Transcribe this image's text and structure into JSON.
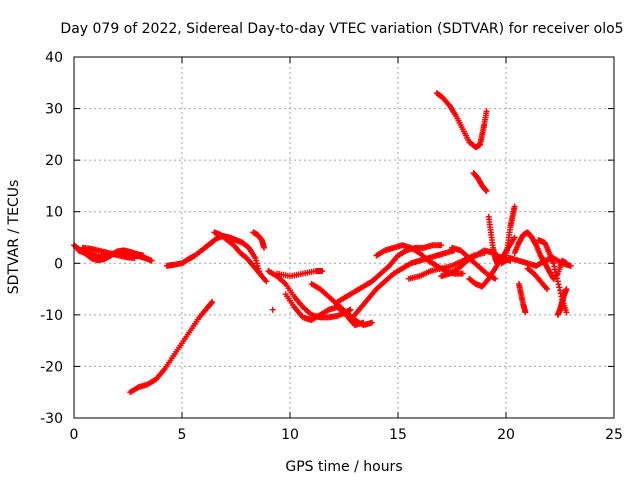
{
  "chart_data": {
    "type": "scatter",
    "title": "Day 079 of 2022, Sidereal Day-to-day VTEC variation (SDTVAR) for receiver olo5",
    "xlabel": "GPS time / hours",
    "ylabel": "SDTVAR / TECUs",
    "xlim": [
      0,
      25
    ],
    "ylim": [
      -30,
      40
    ],
    "xticks": [
      0,
      5,
      10,
      15,
      20,
      25
    ],
    "yticks": [
      -30,
      -20,
      -10,
      0,
      10,
      20,
      30,
      40
    ],
    "xtick_labels": [
      "0",
      "5",
      "10",
      "15",
      "20",
      "25"
    ],
    "ytick_labels": [
      "-30",
      "-20",
      "-10",
      "0",
      "10",
      "20",
      "30",
      "40"
    ],
    "grid": true,
    "marker": "plus",
    "color": "#ff0000",
    "series": [
      {
        "name": "early-1",
        "x": [
          0.0,
          0.3,
          0.6,
          0.9,
          1.2,
          1.5,
          1.8,
          2.1,
          2.4,
          2.7,
          3.0,
          3.3,
          3.6
        ],
        "y": [
          3.5,
          2.5,
          2.0,
          1.5,
          1.2,
          1.4,
          1.8,
          2.2,
          2.0,
          1.6,
          1.4,
          1.0,
          0.5
        ]
      },
      {
        "name": "early-2",
        "x": [
          0.2,
          0.5,
          0.8,
          1.1,
          1.4,
          1.7,
          2.0,
          2.3,
          2.6,
          2.9,
          3.2
        ],
        "y": [
          2.5,
          2.0,
          1.0,
          0.6,
          0.8,
          1.5,
          2.3,
          2.5,
          2.2,
          1.8,
          1.5
        ]
      },
      {
        "name": "early-3",
        "x": [
          0.4,
          0.8,
          1.2,
          1.6,
          2.0,
          2.4,
          2.8
        ],
        "y": [
          3.0,
          2.8,
          2.4,
          2.0,
          1.6,
          1.2,
          1.0
        ]
      },
      {
        "name": "rise-neg",
        "x": [
          2.6,
          3.0,
          3.4,
          3.8,
          4.2,
          4.6,
          5.0,
          5.4,
          5.8,
          6.2,
          6.4
        ],
        "y": [
          -25.0,
          -24.0,
          -23.5,
          -22.5,
          -20.5,
          -18.0,
          -15.5,
          -13.0,
          -10.5,
          -8.5,
          -7.5
        ]
      },
      {
        "name": "mid-1",
        "x": [
          4.3,
          4.6,
          5.0,
          5.3,
          5.6,
          6.0,
          6.3,
          6.6,
          6.9,
          7.2,
          7.5,
          7.8,
          8.1,
          8.4,
          8.6
        ],
        "y": [
          -0.5,
          -0.3,
          0.0,
          0.8,
          1.5,
          2.8,
          3.8,
          4.8,
          5.3,
          5.0,
          4.5,
          4.0,
          3.0,
          1.0,
          -2.0
        ]
      },
      {
        "name": "mid-2",
        "x": [
          6.5,
          6.8,
          7.1,
          7.4,
          7.7,
          8.0,
          8.3,
          8.6,
          8.9
        ],
        "y": [
          6.0,
          5.5,
          4.5,
          3.5,
          2.0,
          1.0,
          -0.5,
          -2.0,
          -3.5
        ]
      },
      {
        "name": "mid-3",
        "x": [
          8.3,
          8.5,
          8.7,
          8.8
        ],
        "y": [
          6.0,
          5.5,
          4.5,
          3.0
        ]
      },
      {
        "name": "mid-4",
        "x": [
          9.2
        ],
        "y": [
          -9.0
        ]
      },
      {
        "name": "trough-1",
        "x": [
          9.0,
          9.4,
          9.8,
          10.2,
          10.6,
          11.0,
          11.4,
          11.8,
          12.2,
          12.6,
          12.8
        ],
        "y": [
          -1.5,
          -2.5,
          -4.0,
          -6.5,
          -8.5,
          -10.0,
          -10.5,
          -10.5,
          -10.2,
          -9.5,
          -9.0
        ]
      },
      {
        "name": "trough-2",
        "x": [
          9.8,
          10.2,
          10.6,
          11.0,
          11.4,
          11.8,
          12.2,
          12.6,
          13.0,
          13.4
        ],
        "y": [
          -6.0,
          -8.5,
          -10.5,
          -11.0,
          -10.0,
          -9.0,
          -8.5,
          -10.0,
          -12.0,
          -11.5
        ]
      },
      {
        "name": "trough-3",
        "x": [
          9.4,
          10.0,
          10.6,
          11.2,
          11.5
        ],
        "y": [
          -2.0,
          -2.5,
          -2.0,
          -1.5,
          -1.5
        ]
      },
      {
        "name": "trough-4",
        "x": [
          11.0,
          11.4,
          11.8,
          12.2,
          12.6,
          13.0,
          13.4,
          13.8
        ],
        "y": [
          -4.0,
          -5.0,
          -6.5,
          -8.0,
          -9.5,
          -11.0,
          -12.0,
          -11.5
        ]
      },
      {
        "name": "recover-1",
        "x": [
          12.8,
          13.2,
          13.6,
          14.0,
          14.4,
          14.8,
          15.2,
          15.6,
          16.0,
          16.4,
          16.8,
          17.2,
          17.6
        ],
        "y": [
          -11.0,
          -9.0,
          -7.0,
          -5.0,
          -3.5,
          -2.0,
          -1.0,
          0.0,
          0.5,
          1.0,
          1.5,
          2.0,
          2.5
        ]
      },
      {
        "name": "recover-2",
        "x": [
          12.2,
          12.6,
          13.0,
          13.4,
          13.8,
          14.2,
          14.6,
          15.0,
          15.4,
          15.8,
          16.2,
          16.6,
          17.0
        ],
        "y": [
          -7.5,
          -6.5,
          -5.5,
          -4.5,
          -3.5,
          -2.0,
          -0.5,
          1.5,
          2.5,
          3.0,
          3.0,
          3.5,
          3.5
        ]
      },
      {
        "name": "recover-3",
        "x": [
          14.0,
          14.4,
          14.8,
          15.2,
          15.6,
          16.0,
          16.4,
          16.8,
          17.2,
          17.6,
          18.0
        ],
        "y": [
          1.5,
          2.5,
          3.0,
          3.5,
          3.0,
          2.0,
          0.5,
          -0.5,
          -1.5,
          -2.0,
          -2.0
        ]
      },
      {
        "name": "recover-4",
        "x": [
          15.5,
          16.0,
          16.5,
          17.0,
          17.5,
          18.0,
          18.5,
          19.0
        ],
        "y": [
          -3.0,
          -2.5,
          -1.5,
          -1.0,
          -0.5,
          0.5,
          1.5,
          2.0
        ]
      },
      {
        "name": "late-1",
        "x": [
          17.0,
          17.4,
          17.8,
          18.2,
          18.6,
          19.0,
          19.4,
          19.8,
          20.2
        ],
        "y": [
          -2.5,
          -2.0,
          -1.0,
          0.5,
          1.5,
          2.5,
          2.0,
          1.0,
          0.5
        ]
      },
      {
        "name": "late-2",
        "x": [
          17.5,
          17.9,
          18.3,
          18.7,
          19.1,
          19.5
        ],
        "y": [
          3.0,
          2.5,
          1.0,
          -0.5,
          -2.0,
          -3.0
        ]
      },
      {
        "name": "late-3",
        "x": [
          18.3,
          18.6,
          18.9,
          19.2,
          19.5,
          19.8,
          20.1,
          20.4
        ],
        "y": [
          -3.0,
          -4.0,
          -4.5,
          -3.0,
          -1.0,
          1.0,
          3.0,
          5.0
        ]
      },
      {
        "name": "arc-top",
        "x": [
          16.8,
          17.1,
          17.4,
          17.7,
          18.0,
          18.3,
          18.6,
          18.8,
          18.9,
          19.0,
          19.1
        ],
        "y": [
          33.0,
          32.0,
          30.5,
          28.5,
          26.0,
          23.5,
          22.5,
          23.0,
          25.0,
          27.0,
          29.5
        ]
      },
      {
        "name": "arc-mid",
        "x": [
          18.5,
          18.7,
          18.9,
          19.1
        ],
        "y": [
          17.5,
          16.5,
          15.0,
          14.0
        ]
      },
      {
        "name": "spike-1",
        "x": [
          19.2,
          19.3,
          19.4,
          19.5,
          19.6
        ],
        "y": [
          9.0,
          6.0,
          3.0,
          1.0,
          0.0
        ]
      },
      {
        "name": "spike-2",
        "x": [
          20.0,
          20.1,
          20.2,
          20.3,
          20.4
        ],
        "y": [
          1.0,
          4.0,
          7.0,
          9.0,
          11.0
        ]
      },
      {
        "name": "tail-1",
        "x": [
          20.4,
          20.6,
          20.8,
          21.0,
          21.2,
          21.4,
          21.6,
          21.8,
          22.0,
          22.2,
          22.4,
          22.6,
          22.8
        ],
        "y": [
          2.0,
          4.0,
          5.5,
          6.0,
          5.0,
          3.5,
          1.5,
          0.0,
          -1.5,
          -3.0,
          -2.0,
          0.5,
          0.0
        ]
      },
      {
        "name": "tail-2",
        "x": [
          20.6,
          20.7,
          20.8,
          20.9
        ],
        "y": [
          -4.0,
          -6.0,
          -8.0,
          -9.5
        ]
      },
      {
        "name": "tail-3",
        "x": [
          21.5,
          21.8,
          22.0,
          22.2,
          22.4,
          22.6,
          22.8
        ],
        "y": [
          4.5,
          4.0,
          2.0,
          0.0,
          -3.5,
          -7.0,
          -9.5
        ]
      },
      {
        "name": "tail-4",
        "x": [
          22.4,
          22.5,
          22.6,
          22.7,
          22.8
        ],
        "y": [
          -10.0,
          -9.0,
          -7.5,
          -6.0,
          -5.0
        ]
      },
      {
        "name": "tail-5",
        "x": [
          19.8,
          20.2,
          20.6,
          21.0,
          21.4,
          21.8,
          22.2,
          22.6,
          23.0
        ],
        "y": [
          0.0,
          1.0,
          0.5,
          0.0,
          -0.5,
          0.5,
          1.0,
          0.0,
          -0.5
        ]
      },
      {
        "name": "tail-6",
        "x": [
          21.0,
          21.3,
          21.6,
          21.9
        ],
        "y": [
          -1.0,
          -2.0,
          -3.5,
          -5.0
        ]
      }
    ]
  }
}
